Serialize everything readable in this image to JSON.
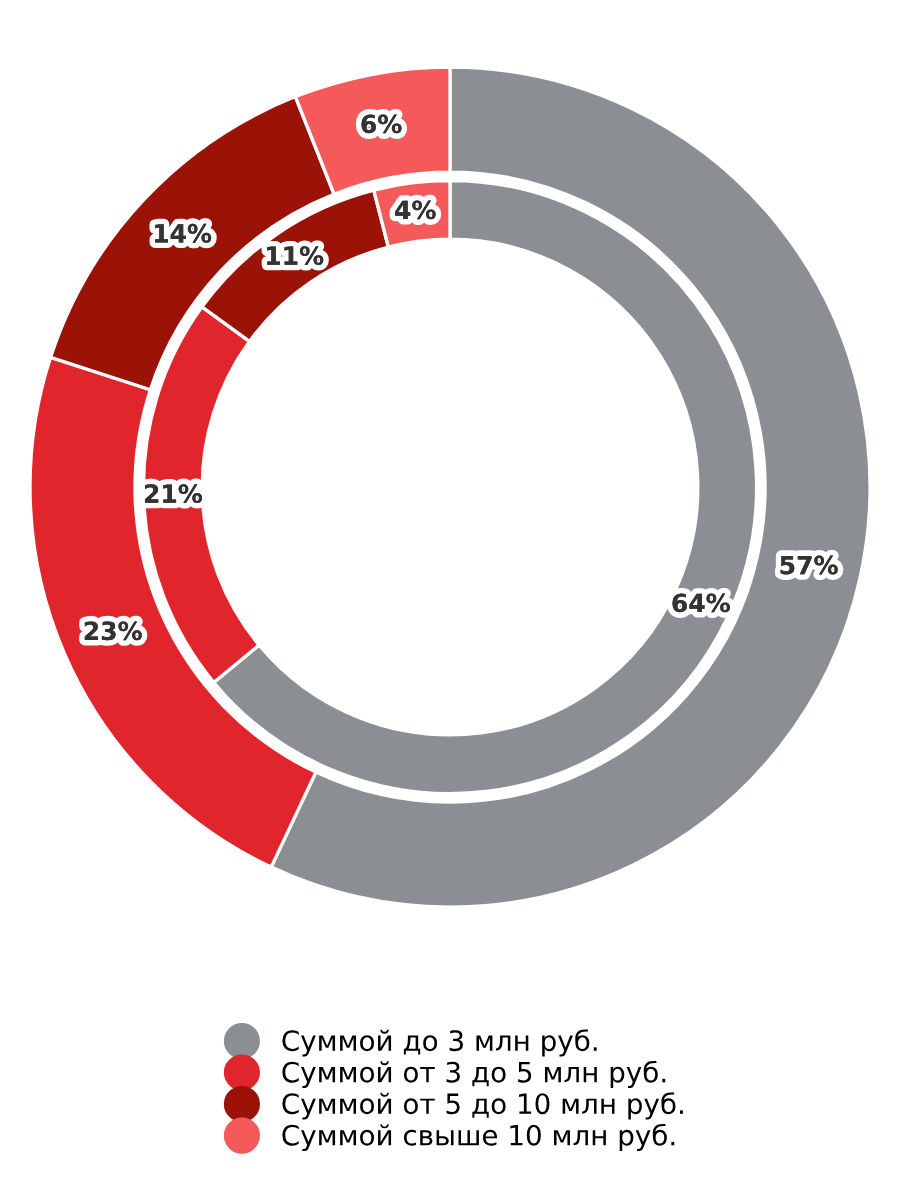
{
  "chart_data": {
    "type": "donut",
    "categories": [
      "Суммой до 3 млн руб.",
      "Суммой от 3 до 5 млн руб.",
      "Суммой от 5 до 10 млн руб.",
      "Суммой свыше 10 млн руб."
    ],
    "colors": [
      "#8b8e92",
      "#e0262c",
      "#9a1306",
      "#f45a5a"
    ],
    "series": [
      {
        "values": [
          57,
          23,
          14,
          6
        ],
        "value_labels": [
          "57%",
          "23%",
          "14%",
          "6%"
        ]
      },
      {
        "values": [
          64,
          21,
          11,
          4
        ],
        "value_labels": [
          "64%",
          "21%",
          "11%",
          "4%"
        ]
      }
    ],
    "legend": "bottom"
  }
}
